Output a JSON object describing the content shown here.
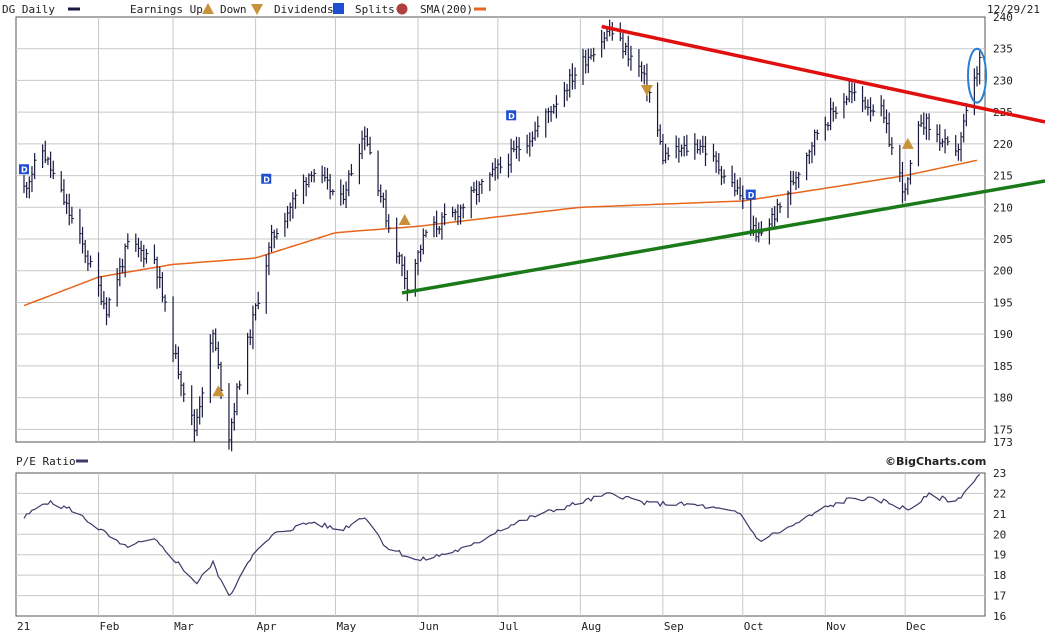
{
  "header": {
    "symbol_label": "DG Daily",
    "earnings_label": "Earnings Up",
    "down_label": "Down",
    "dividends_label": "Dividends",
    "splits_label": "Splits",
    "sma_label": "SMA(200)",
    "date_label": "12/29/21"
  },
  "lower_panel": {
    "title": "P/E Ratio",
    "brand": "©BigCharts.com"
  },
  "colors": {
    "price_bars": "#1a1a40",
    "sma": "#e8651e",
    "resistance": "#e01010",
    "support": "#1a7a1a",
    "highlight": "#2a7fd4",
    "dividend": "#1f4fd0",
    "earnings": "#c8923a",
    "pe_line": "#3a3a6a",
    "grid": "#c8c8c8"
  },
  "chart_data": [
    {
      "type": "ohlc",
      "title": "DG Daily",
      "x_tick_labels": [
        "21",
        "Feb",
        "Mar",
        "Apr",
        "May",
        "Jun",
        "Jul",
        "Aug",
        "Sep",
        "Oct",
        "Nov",
        "Dec"
      ],
      "y_tick_labels": [
        "240",
        "235",
        "230",
        "225",
        "220",
        "215",
        "210",
        "205",
        "200",
        "195",
        "190",
        "185",
        "180",
        "175",
        "173"
      ],
      "ylim": [
        173,
        240
      ],
      "grid": true,
      "price_key_points": [
        [
          "2021-01-04",
          213
        ],
        [
          "2021-01-11",
          219
        ],
        [
          "2021-01-25",
          205
        ],
        [
          "2021-02-04",
          194
        ],
        [
          "2021-02-12",
          204
        ],
        [
          "2021-02-22",
          202
        ],
        [
          "2021-03-02",
          186
        ],
        [
          "2021-03-09",
          175
        ],
        [
          "2021-03-16",
          190
        ],
        [
          "2021-03-22",
          174
        ],
        [
          "2021-03-26",
          183
        ],
        [
          "2021-04-07",
          205
        ],
        [
          "2021-04-22",
          216
        ],
        [
          "2021-05-03",
          211
        ],
        [
          "2021-05-12",
          222
        ],
        [
          "2021-05-21",
          207
        ],
        [
          "2021-05-28",
          198
        ],
        [
          "2021-06-04",
          206
        ],
        [
          "2021-06-15",
          209
        ],
        [
          "2021-07-01",
          216
        ],
        [
          "2021-07-15",
          222
        ],
        [
          "2021-08-02",
          233
        ],
        [
          "2021-08-12",
          238
        ],
        [
          "2021-08-23",
          232
        ],
        [
          "2021-08-27",
          228
        ],
        [
          "2021-09-01",
          218
        ],
        [
          "2021-09-15",
          220
        ],
        [
          "2021-09-30",
          212
        ],
        [
          "2021-10-06",
          205
        ],
        [
          "2021-10-15",
          210
        ],
        [
          "2021-10-29",
          222
        ],
        [
          "2021-11-10",
          228
        ],
        [
          "2021-11-22",
          225
        ],
        [
          "2021-12-01",
          212
        ],
        [
          "2021-12-07",
          224
        ],
        [
          "2021-12-20",
          218
        ],
        [
          "2021-12-29",
          233
        ]
      ],
      "sma200_key_points": [
        [
          "2021-01-04",
          194.5
        ],
        [
          "2021-02-01",
          199
        ],
        [
          "2021-03-01",
          201
        ],
        [
          "2021-04-01",
          202
        ],
        [
          "2021-05-01",
          206
        ],
        [
          "2021-06-01",
          207
        ],
        [
          "2021-07-01",
          208.5
        ],
        [
          "2021-08-01",
          210
        ],
        [
          "2021-09-01",
          210.5
        ],
        [
          "2021-10-01",
          211
        ],
        [
          "2021-11-01",
          213
        ],
        [
          "2021-12-01",
          215
        ],
        [
          "2021-12-29",
          217.5
        ]
      ],
      "resistance_line": [
        [
          "2021-08-09",
          238.5
        ],
        [
          "2021-12-31",
          225.5
        ]
      ],
      "support_line": [
        [
          "2021-05-26",
          196.5
        ],
        [
          "2021-12-31",
          212.5
        ]
      ],
      "highlight_ellipse": {
        "date": "2021-12-28",
        "y_low": 226.5,
        "y_high": 235
      },
      "dividends": [
        {
          "date": "2021-01-04",
          "price": 216
        },
        {
          "date": "2021-04-05",
          "price": 214.5
        },
        {
          "date": "2021-07-06",
          "price": 224.5
        },
        {
          "date": "2021-10-04",
          "price": 212
        }
      ],
      "earnings": [
        {
          "date": "2021-03-18",
          "price": 181,
          "kind": "up"
        },
        {
          "date": "2021-05-27",
          "price": 208,
          "kind": "up"
        },
        {
          "date": "2021-08-26",
          "price": 228.5,
          "kind": "down"
        },
        {
          "date": "2021-12-02",
          "price": 220,
          "kind": "up"
        }
      ]
    },
    {
      "type": "line",
      "title": "P/E Ratio",
      "x_tick_labels": [
        "21",
        "Feb",
        "Mar",
        "Apr",
        "May",
        "Jun",
        "Jul",
        "Aug",
        "Sep",
        "Oct",
        "Nov",
        "Dec"
      ],
      "y_tick_labels": [
        "23",
        "22",
        "21",
        "20",
        "19",
        "18",
        "17",
        "16"
      ],
      "ylim": [
        16,
        23
      ],
      "grid": true,
      "series": [
        {
          "points": [
            [
              "2021-01-04",
              20.8
            ],
            [
              "2021-01-12",
              21.6
            ],
            [
              "2021-01-22",
              21.2
            ],
            [
              "2021-02-01",
              20.3
            ],
            [
              "2021-02-10",
              19.4
            ],
            [
              "2021-02-22",
              19.7
            ],
            [
              "2021-03-02",
              18.7
            ],
            [
              "2021-03-10",
              17.6
            ],
            [
              "2021-03-16",
              18.6
            ],
            [
              "2021-03-22",
              16.9
            ],
            [
              "2021-03-29",
              18.7
            ],
            [
              "2021-04-08",
              20.0
            ],
            [
              "2021-04-22",
              20.6
            ],
            [
              "2021-05-03",
              20.2
            ],
            [
              "2021-05-12",
              20.9
            ],
            [
              "2021-05-20",
              19.4
            ],
            [
              "2021-06-01",
              18.7
            ],
            [
              "2021-06-10",
              19.0
            ],
            [
              "2021-06-21",
              19.4
            ],
            [
              "2021-07-01",
              20.2
            ],
            [
              "2021-07-15",
              20.9
            ],
            [
              "2021-08-02",
              21.6
            ],
            [
              "2021-08-13",
              22.0
            ],
            [
              "2021-08-26",
              21.5
            ],
            [
              "2021-09-03",
              21.5
            ],
            [
              "2021-09-15",
              21.4
            ],
            [
              "2021-09-30",
              21.0
            ],
            [
              "2021-10-07",
              19.7
            ],
            [
              "2021-10-18",
              20.3
            ],
            [
              "2021-11-01",
              21.3
            ],
            [
              "2021-11-12",
              21.8
            ],
            [
              "2021-11-24",
              21.6
            ],
            [
              "2021-12-02",
              21.2
            ],
            [
              "2021-12-10",
              21.9
            ],
            [
              "2021-12-20",
              21.6
            ],
            [
              "2021-12-29",
              22.9
            ]
          ]
        }
      ]
    }
  ]
}
